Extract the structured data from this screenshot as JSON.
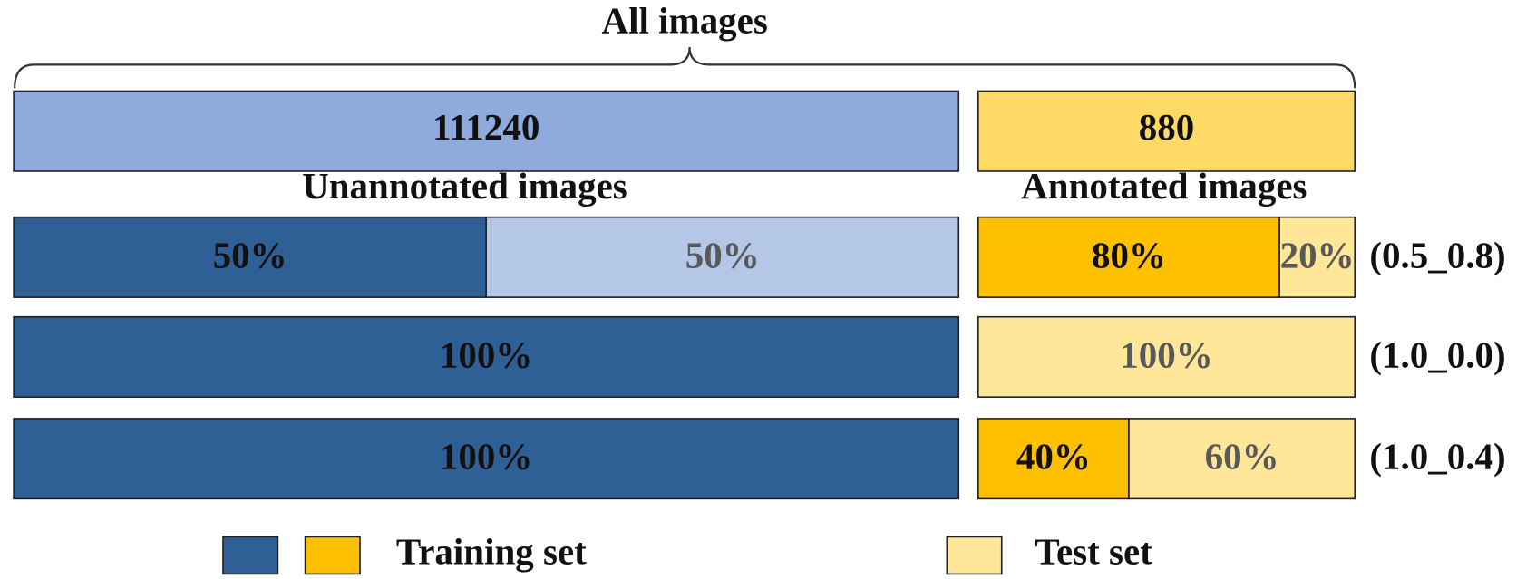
{
  "title": "All images",
  "totals": [
    {
      "text": "111240",
      "color": "#8faadc"
    },
    {
      "text": "880",
      "color": "#ffd966"
    }
  ],
  "groups": [
    "Unannotated images",
    "Annotated images"
  ],
  "rows": [
    {
      "label": "(0.5_0.8)",
      "unannotated": [
        {
          "text": "50%",
          "color": "#2e6096",
          "text_color": "#111111"
        },
        {
          "text": "50%",
          "color": "#b4c7e7",
          "text_color": "#595959"
        }
      ],
      "annotated": [
        {
          "text": "80%",
          "color": "#ffc000",
          "text_color": "#111111"
        },
        {
          "text": "20%",
          "color": "#ffe699",
          "text_color": "#595959"
        }
      ]
    },
    {
      "label": "(1.0_0.0)",
      "unannotated": [
        {
          "text": "100%",
          "color": "#2e6096",
          "text_color": "#111111"
        }
      ],
      "annotated": [
        {
          "text": "100%",
          "color": "#ffe699",
          "text_color": "#595959"
        }
      ]
    },
    {
      "label": "(1.0_0.4)",
      "unannotated": [
        {
          "text": "100%",
          "color": "#2e6096",
          "text_color": "#111111"
        }
      ],
      "annotated": [
        {
          "text": "40%",
          "color": "#ffc000",
          "text_color": "#111111"
        },
        {
          "text": "60%",
          "color": "#ffe699",
          "text_color": "#595959"
        }
      ]
    }
  ],
  "legend": [
    {
      "label": "Training set",
      "colors": [
        "#2e6096",
        "#ffc000"
      ]
    },
    {
      "label": "Test set",
      "colors": [
        "#ffe699"
      ]
    }
  ]
}
